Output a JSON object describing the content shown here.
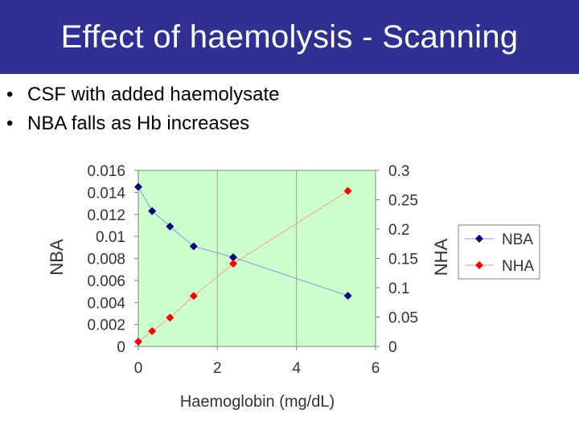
{
  "slide": {
    "title": "Effect of haemolysis - Scanning",
    "bullets": [
      "CSF with added haemolysate",
      "NBA falls as Hb increases"
    ]
  },
  "chart_data": {
    "type": "line",
    "xlabel": "Haemoglobin (mg/dL)",
    "ylabel": "NBA",
    "y2label": "NHA",
    "xlim": [
      0,
      6
    ],
    "ylim": [
      0,
      0.016
    ],
    "y2lim": [
      0,
      0.3
    ],
    "x_ticks": [
      "0",
      "2",
      "4",
      "6"
    ],
    "y_ticks": [
      "0",
      "0.002",
      "0.004",
      "0.006",
      "0.008",
      "0.01",
      "0.012",
      "0.014",
      "0.016"
    ],
    "y2_ticks": [
      "0",
      "0.05",
      "0.1",
      "0.15",
      "0.2",
      "0.25",
      "0.3"
    ],
    "grid": "vertical",
    "plot_background": "#ccffcc",
    "legend": "right",
    "series": [
      {
        "name": "NBA",
        "axis": "left",
        "color": "#000080",
        "marker": "diamond",
        "x": [
          0,
          0.35,
          0.8,
          1.4,
          2.4,
          5.3
        ],
        "y": [
          0.0145,
          0.0123,
          0.0109,
          0.0091,
          0.0081,
          0.0046
        ]
      },
      {
        "name": "NHA",
        "axis": "right",
        "color": "#ff0000",
        "marker": "diamond",
        "x": [
          0,
          0.35,
          0.8,
          1.4,
          2.4,
          5.3
        ],
        "y": [
          0.008,
          0.026,
          0.049,
          0.086,
          0.141,
          0.265
        ]
      }
    ]
  }
}
